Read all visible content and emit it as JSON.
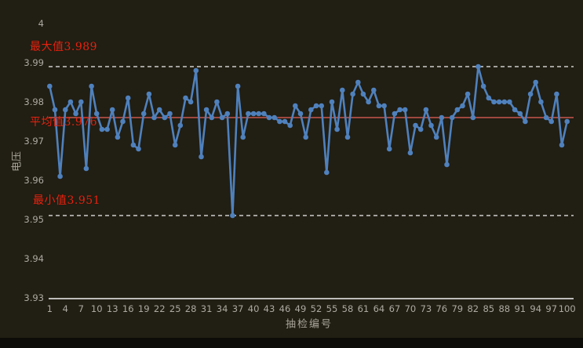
{
  "chart_data": {
    "type": "line",
    "title": "",
    "xlabel": "抽检编号",
    "ylabel": "电压",
    "x_range": [
      1,
      100
    ],
    "ylim": [
      3.93,
      4.0
    ],
    "grid": "off",
    "legend": "none",
    "x_ticks": [
      1,
      4,
      7,
      10,
      13,
      16,
      19,
      22,
      25,
      28,
      31,
      34,
      37,
      40,
      43,
      46,
      49,
      52,
      55,
      58,
      61,
      64,
      67,
      70,
      73,
      76,
      79,
      82,
      85,
      88,
      91,
      94,
      97,
      100
    ],
    "y_ticks": [
      {
        "value": 4.0,
        "label": "4"
      },
      {
        "value": 3.99,
        "label": "3.99"
      },
      {
        "value": 3.98,
        "label": "3.98"
      },
      {
        "value": 3.97,
        "label": "3.97"
      },
      {
        "value": 3.96,
        "label": "3.96"
      },
      {
        "value": 3.95,
        "label": "3.95"
      },
      {
        "value": 3.94,
        "label": "3.94"
      },
      {
        "value": 3.93,
        "label": "3.93"
      }
    ],
    "series": [
      {
        "name": "电压",
        "x_start": 1,
        "values": [
          3.984,
          3.978,
          3.961,
          3.978,
          3.98,
          3.977,
          3.98,
          3.963,
          3.984,
          3.977,
          3.973,
          3.973,
          3.978,
          3.971,
          3.975,
          3.981,
          3.969,
          3.968,
          3.977,
          3.982,
          3.976,
          3.978,
          3.976,
          3.977,
          3.969,
          3.974,
          3.981,
          3.98,
          3.988,
          3.966,
          3.978,
          3.976,
          3.98,
          3.976,
          3.977,
          3.951,
          3.984,
          3.971,
          3.977,
          3.977,
          3.977,
          3.977,
          3.976,
          3.976,
          3.975,
          3.975,
          3.974,
          3.979,
          3.977,
          3.971,
          3.978,
          3.979,
          3.979,
          3.962,
          3.98,
          3.973,
          3.983,
          3.971,
          3.982,
          3.985,
          3.982,
          3.98,
          3.983,
          3.979,
          3.979,
          3.968,
          3.977,
          3.978,
          3.978,
          3.967,
          3.974,
          3.973,
          3.978,
          3.974,
          3.971,
          3.976,
          3.964,
          3.976,
          3.978,
          3.979,
          3.982,
          3.976,
          3.989,
          3.984,
          3.981,
          3.98,
          3.98,
          3.98,
          3.98,
          3.978,
          3.977,
          3.975,
          3.982,
          3.985,
          3.98,
          3.976,
          3.975,
          3.982,
          3.969,
          3.975
        ]
      }
    ],
    "annotations": [
      {
        "name": "max",
        "label": "最大值3.989",
        "value": 3.989,
        "line_style": "dashed"
      },
      {
        "name": "mean",
        "label": "平均值3.976",
        "value": 3.976,
        "line_style": "solid"
      },
      {
        "name": "min",
        "label": "最小值3.951",
        "value": 3.951,
        "line_style": "dashed"
      }
    ]
  },
  "colors": {
    "background": "#211e13",
    "series_line": "#4f81bd",
    "marker": "#4f81bd",
    "mean_line": "#c9574e",
    "annotation_text": "#e8210e",
    "tick_text": "#adaaa2",
    "axis_line": "#f2f2f2",
    "dashed_line": "#f2f2f2"
  }
}
